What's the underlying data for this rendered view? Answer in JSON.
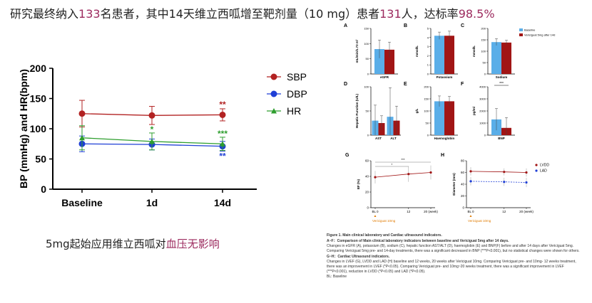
{
  "headline": {
    "p1": "研究最终纳入",
    "n1": "133",
    "p2": "名患者，其中14天维立西呱增至靶剂量（10 mg）患者",
    "n2": "131",
    "p3": "人，达标率",
    "n3": "98.5%"
  },
  "subcaption": {
    "p1": "5mg起始应用维立西呱对",
    "hl": "血压无影响"
  },
  "colors": {
    "sbp": "#b22222",
    "dbp": "#1f3fd6",
    "hr": "#2e9e2e",
    "baseline": "#5aaee8",
    "treated": "#a11515",
    "highlight": "#9c2a5e"
  },
  "chart_data": [
    {
      "type": "line",
      "ylabel": "BP (mmHg) and HR(bpm)",
      "ylim": [
        0,
        200
      ],
      "yticks": [
        0,
        50,
        100,
        150,
        200
      ],
      "categories": [
        "Baseline",
        "1d",
        "14d"
      ],
      "legend_position": "right",
      "series": [
        {
          "name": "SBP",
          "values": [
            125,
            122,
            123
          ],
          "err": [
            22,
            15,
            10
          ],
          "marker": "circle",
          "annotations": [
            "",
            "",
            "**"
          ]
        },
        {
          "name": "DBP",
          "values": [
            75,
            74,
            71
          ],
          "err": [
            13,
            9,
            8
          ],
          "marker": "circle",
          "annotations": [
            "",
            "",
            "**"
          ]
        },
        {
          "name": "HR",
          "values": [
            85,
            79,
            75
          ],
          "err": [
            20,
            14,
            11
          ],
          "marker": "triangle",
          "annotations": [
            "",
            "*",
            "***"
          ]
        }
      ]
    },
    {
      "panel": "A",
      "type": "bar",
      "ylabel": "mL/min/1.73 m²",
      "categories": [
        "eGFR"
      ],
      "series": [
        {
          "values": [
            82
          ],
          "err": [
            30
          ]
        },
        {
          "values": [
            80
          ],
          "err": [
            25
          ]
        }
      ],
      "ylim": [
        0,
        150
      ],
      "yticks": [
        0,
        50,
        100,
        150
      ]
    },
    {
      "panel": "B",
      "type": "bar",
      "ylabel": "mmol/L",
      "categories": [
        "Potassium"
      ],
      "series": [
        {
          "values": [
            4.2
          ],
          "err": [
            0.4
          ]
        },
        {
          "values": [
            4.2
          ],
          "err": [
            0.5
          ]
        }
      ],
      "ylim": [
        0,
        5
      ],
      "yticks": [
        0,
        1,
        2,
        3,
        4,
        5
      ]
    },
    {
      "panel": "C",
      "type": "bar",
      "ylabel": "mmol/L",
      "categories": [
        "Sodium"
      ],
      "series": [
        {
          "values": [
            140
          ],
          "err": [
            15
          ]
        },
        {
          "values": [
            138
          ],
          "err": [
            10
          ]
        }
      ],
      "ylim": [
        0,
        200
      ],
      "yticks": [
        0,
        50,
        100,
        150,
        200
      ],
      "legend": [
        "Baseline",
        "Vericiguat 5mg after 14d"
      ]
    },
    {
      "panel": "D",
      "type": "bar",
      "ylabel": "Hepatic Function (U/L)",
      "categories": [
        "AST",
        "ALT"
      ],
      "series": [
        {
          "values": [
            30,
            38
          ],
          "err": [
            32,
            60
          ]
        },
        {
          "values": [
            25,
            30
          ],
          "err": [
            15,
            30
          ]
        }
      ],
      "ylim": [
        0,
        100
      ],
      "yticks": [
        0,
        50,
        100
      ]
    },
    {
      "panel": "E",
      "type": "bar",
      "ylabel": "g/L",
      "categories": [
        "Haemoglobin"
      ],
      "series": [
        {
          "values": [
            140
          ],
          "err": [
            22
          ]
        },
        {
          "values": [
            140
          ],
          "err": [
            20
          ]
        }
      ],
      "ylim": [
        0,
        200
      ],
      "yticks": [
        0,
        50,
        100,
        150,
        200
      ]
    },
    {
      "panel": "F",
      "type": "bar",
      "ylabel": "pg/ml",
      "categories": [
        "BNP"
      ],
      "series": [
        {
          "values": [
            1300
          ],
          "err": [
            900
          ]
        },
        {
          "values": [
            600
          ],
          "err": [
            850
          ]
        }
      ],
      "ylim": [
        0,
        4000
      ],
      "yticks": [
        0,
        1000,
        2000,
        3000,
        4000
      ],
      "annotation": "***"
    },
    {
      "panel": "G",
      "type": "line",
      "ylabel": "EF (%)",
      "x": [
        0,
        12,
        20
      ],
      "xticks": [
        "BL 0",
        "12",
        "20 (week)"
      ],
      "series": [
        {
          "values": [
            39,
            43,
            45
          ],
          "err": [
            8,
            10,
            9
          ]
        }
      ],
      "ylim": [
        0,
        60
      ],
      "yticks": [
        0,
        20,
        40,
        60
      ],
      "annotations": [
        "*",
        "***"
      ],
      "note": "Vericiguat 10mg"
    },
    {
      "panel": "H",
      "type": "line",
      "ylabel": "Diameter (mm)",
      "x": [
        0,
        12,
        20
      ],
      "xticks": [
        "BL 0",
        "12",
        "20 (week)"
      ],
      "series": [
        {
          "name": "LVDD",
          "values": [
            62,
            61,
            60
          ],
          "err": [
            7,
            6,
            7
          ]
        },
        {
          "name": "LAD",
          "values": [
            45,
            44,
            43
          ],
          "err": [
            7,
            7,
            8
          ]
        }
      ],
      "ylim": [
        0,
        80
      ],
      "yticks": [
        0,
        20,
        40,
        60,
        80
      ],
      "note": "Vericiguat 10mg"
    }
  ],
  "caption": {
    "title": "Figure 1. Main clinical laboratory and Cardiac ultrasound indicators.",
    "af_title": "A~F：Comparison of Main clinical laboratory indicators between baseline and Vericiguat 5mg after 14 days.",
    "af_body": "Changes in eGFR (A), potassium (B), sodium (C), hepatic function AST/ALT (D), haemoglobin (E) and BNP(F) before and after 14 days after Vericiguat 5mg. Comparing Vericiguat 5mg pre- and 14-day treatments, there was a significant decreased in BNP (***P<0.001), but no statistical changes were shown for others.",
    "gh_title": "G~H：Cardiac Ultrasound indicators.",
    "gh_body": "Changes in LVEF (G), LVDD and LAD (H) baseline and 12 weeks, 20 weeks after Vericiguat 10mg. Comparing Vericiguat pre- and 10mg- 12 weeks treatment, there was an improvement in LVEF (*P<0.05). Comparing Vericiguat pre- and 10mg~20 weeks treatment, there was a significant improvement in LVEF (***P<0.001), reduction in LVDD (*P<0.05) and LAD (*P<0.05).",
    "abbr": "BL: Baseline"
  }
}
